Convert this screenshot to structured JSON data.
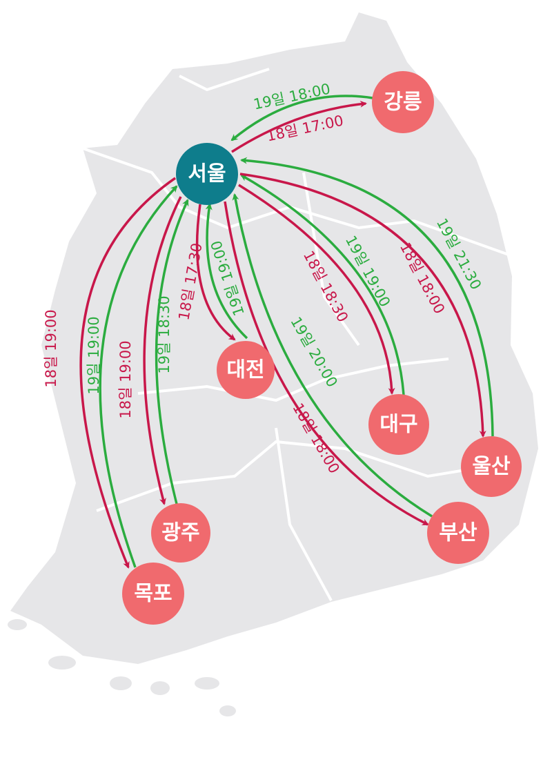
{
  "colors": {
    "map_land": "#e6e6e8",
    "hub": "#0e7d8c",
    "city": "#f06a6e",
    "outbound": "#c8174a",
    "return": "#2bac3f"
  },
  "hub": {
    "name": "서울"
  },
  "cities": {
    "gangneung": {
      "name": "강릉",
      "outbound": "18일 17:00",
      "return": "19일 18:00"
    },
    "daejeon": {
      "name": "대전",
      "outbound": "18일 17:30",
      "return": "19일 19:00"
    },
    "daegu": {
      "name": "대구",
      "outbound": "18일 18:30",
      "return": "19일 19:00"
    },
    "ulsan": {
      "name": "울산",
      "outbound": "18일 18:00",
      "return": "19일 21:30"
    },
    "busan": {
      "name": "부산",
      "outbound": "18일 18:00",
      "return": "19일 20:00"
    },
    "gwangju": {
      "name": "광주",
      "outbound": "18일 19:00",
      "return": "19일 18:30"
    },
    "mokpo": {
      "name": "목포",
      "outbound": "18일 19:00",
      "return": "19일 19:00"
    }
  }
}
